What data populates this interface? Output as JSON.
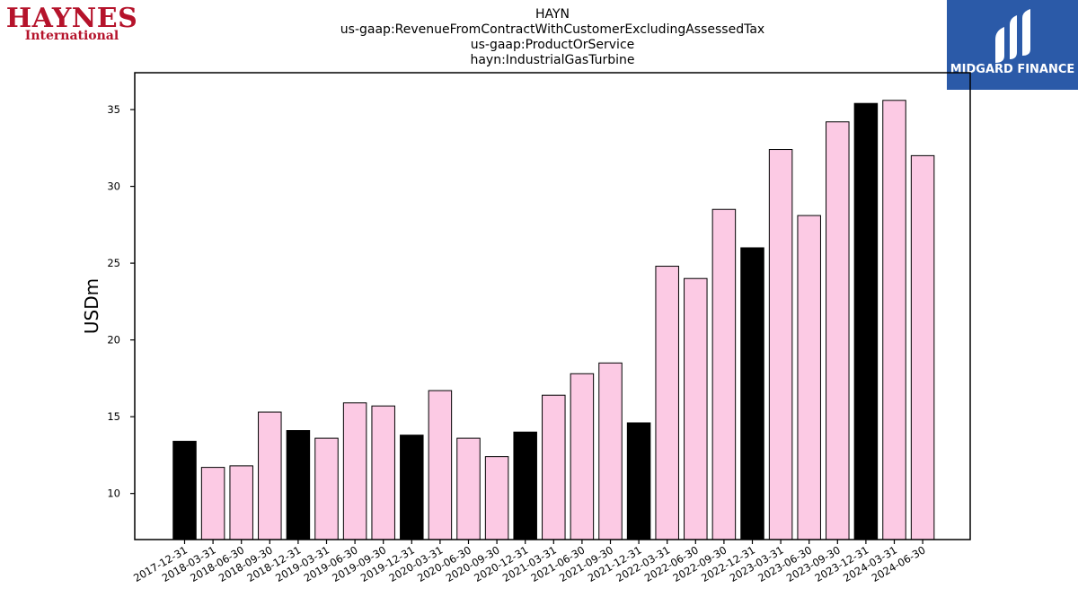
{
  "logos": {
    "left": {
      "main": "HAYNES",
      "sub": "International"
    },
    "right": {
      "text": "MIDGARD FINANCE",
      "bg_color": "#2b5aa8"
    }
  },
  "chart_data": {
    "type": "bar",
    "title_lines": [
      "HAYN",
      "us-gaap:RevenueFromContractWithCustomerExcludingAssessedTax",
      "us-gaap:ProductOrService",
      "hayn:IndustrialGasTurbine"
    ],
    "xlabel": "",
    "ylabel": "USDm",
    "ylim": [
      7,
      37.4
    ],
    "yticks": [
      10,
      15,
      20,
      25,
      30,
      35
    ],
    "categories": [
      "2017-12-31",
      "2018-03-31",
      "2018-06-30",
      "2018-09-30",
      "2018-12-31",
      "2019-03-31",
      "2019-06-30",
      "2019-09-30",
      "2019-12-31",
      "2020-03-31",
      "2020-06-30",
      "2020-09-30",
      "2020-12-31",
      "2021-03-31",
      "2021-06-30",
      "2021-09-30",
      "2021-12-31",
      "2022-03-31",
      "2022-06-30",
      "2022-09-30",
      "2022-12-31",
      "2023-03-31",
      "2023-06-30",
      "2023-09-30",
      "2023-12-31",
      "2024-03-31",
      "2024-06-30"
    ],
    "values": [
      13.4,
      11.7,
      11.8,
      15.3,
      14.1,
      13.6,
      15.9,
      15.7,
      13.8,
      16.7,
      13.6,
      12.4,
      14.0,
      16.4,
      17.8,
      18.5,
      14.6,
      24.8,
      24.0,
      28.5,
      26.0,
      32.4,
      28.1,
      34.2,
      35.4,
      35.6,
      32.0
    ],
    "bar_colors": {
      "default": "#fccae4",
      "year_end": "#000000",
      "edge": "#000000"
    },
    "grid": false,
    "legend": "none"
  }
}
